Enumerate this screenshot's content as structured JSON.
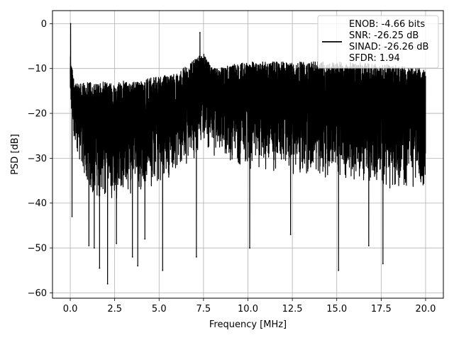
{
  "chart_data": {
    "type": "line",
    "title": "",
    "xlabel": "Frequency [MHz]",
    "ylabel": "PSD [dB]",
    "xlim": [
      -1.0,
      21.0
    ],
    "ylim": [
      -61.2,
      2.9
    ],
    "xticks": [
      0.0,
      2.5,
      5.0,
      7.5,
      10.0,
      12.5,
      15.0,
      17.5,
      20.0
    ],
    "xtick_labels": [
      "0.0",
      "2.5",
      "5.0",
      "7.5",
      "10.0",
      "12.5",
      "15.0",
      "17.5",
      "20.0"
    ],
    "yticks": [
      0,
      -10,
      -20,
      -30,
      -40,
      -50,
      -60
    ],
    "ytick_labels": [
      "0",
      "−10",
      "−20",
      "−30",
      "−40",
      "−50",
      "−60"
    ],
    "grid": true,
    "legend_position": "upper right",
    "line_color": "#000000",
    "legend_entries": [
      "ENOB: -4.66 bits",
      "SNR: -26.25 dB",
      "SINAD: -26.26 dB",
      "SFDR: 1.94"
    ],
    "series": [
      {
        "x_range": [
          0.0,
          20.0
        ],
        "peaks": [
          {
            "x": 0.02,
            "y": 0.0
          },
          {
            "x": 7.3,
            "y": -2.0
          }
        ],
        "band_upper": [
          [
            0.0,
            -7.0
          ],
          [
            0.25,
            -13.5
          ],
          [
            1.0,
            -13.0
          ],
          [
            2.0,
            -13.0
          ],
          [
            4.0,
            -12.5
          ],
          [
            6.0,
            -11.0
          ],
          [
            7.0,
            -8.0
          ],
          [
            7.5,
            -6.5
          ],
          [
            8.0,
            -10.0
          ],
          [
            10.0,
            -8.5
          ],
          [
            12.5,
            -8.5
          ],
          [
            15.0,
            -8.5
          ],
          [
            17.5,
            -9.0
          ],
          [
            20.0,
            -10.0
          ]
        ],
        "band_lower": [
          [
            0.0,
            -22.0
          ],
          [
            1.0,
            -40.0
          ],
          [
            2.0,
            -40.0
          ],
          [
            4.0,
            -38.0
          ],
          [
            6.0,
            -34.0
          ],
          [
            7.0,
            -30.0
          ],
          [
            7.5,
            -27.0
          ],
          [
            8.0,
            -30.0
          ],
          [
            10.0,
            -33.0
          ],
          [
            12.5,
            -34.0
          ],
          [
            15.0,
            -35.0
          ],
          [
            17.5,
            -37.0
          ],
          [
            20.0,
            -38.0
          ]
        ],
        "min_spikes": [
          {
            "x": 0.1,
            "y": -43.0
          },
          {
            "x": 1.05,
            "y": -49.5
          },
          {
            "x": 1.35,
            "y": -50.0
          },
          {
            "x": 1.65,
            "y": -54.5
          },
          {
            "x": 2.1,
            "y": -58.0
          },
          {
            "x": 2.6,
            "y": -49.0
          },
          {
            "x": 3.5,
            "y": -52.0
          },
          {
            "x": 3.8,
            "y": -54.0
          },
          {
            "x": 4.2,
            "y": -48.0
          },
          {
            "x": 5.2,
            "y": -55.0
          },
          {
            "x": 7.1,
            "y": -52.0
          },
          {
            "x": 10.1,
            "y": -50.0
          },
          {
            "x": 12.4,
            "y": -47.0
          },
          {
            "x": 15.1,
            "y": -55.0
          },
          {
            "x": 16.8,
            "y": -49.5
          },
          {
            "x": 17.6,
            "y": -53.5
          }
        ]
      }
    ]
  }
}
